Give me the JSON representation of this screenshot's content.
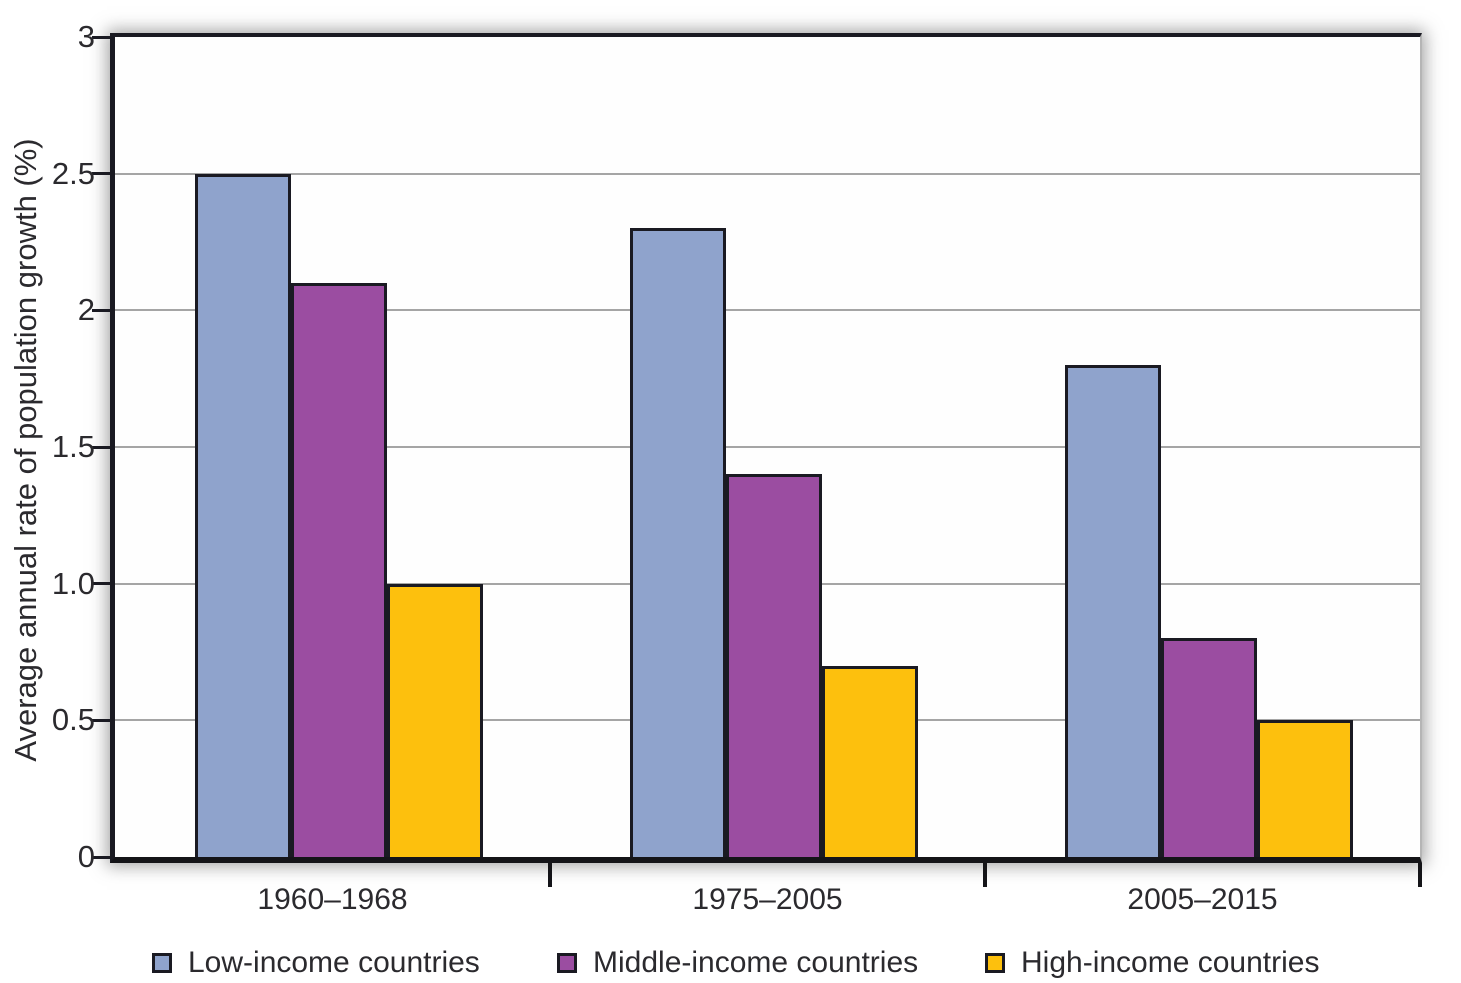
{
  "chart_data": {
    "type": "bar",
    "title": "",
    "categories": [
      "1960–1968",
      "1975–2005",
      "2005–2015"
    ],
    "series": [
      {
        "name": "Low-income countries",
        "color": "#8FA3CC",
        "values": [
          2.5,
          2.3,
          1.8
        ]
      },
      {
        "name": "Middle-income countries",
        "color": "#9B4DA1",
        "values": [
          2.1,
          1.4,
          0.8
        ]
      },
      {
        "name": "High-income countries",
        "color": "#FDC00D",
        "values": [
          1.0,
          0.7,
          0.5
        ]
      }
    ],
    "xlabel": "",
    "ylabel": "Average annual rate of population growth (%)",
    "ylim": [
      0,
      3
    ],
    "yticks": [
      {
        "label": "3",
        "value": 3
      },
      {
        "label": "2.5",
        "value": 2.5
      },
      {
        "label": "2",
        "value": 2
      },
      {
        "label": "1.5",
        "value": 1.5
      },
      {
        "label": "1.0",
        "value": 1.0
      },
      {
        "label": "0.5",
        "value": 0.5
      },
      {
        "label": "0",
        "value": 0
      }
    ],
    "gridlines": [
      2.5,
      2,
      1.5,
      1,
      0.5
    ],
    "grid": true,
    "legend_position": "bottom",
    "colors": {
      "axis": "#1a1a22",
      "gridline": "#a5a5a5",
      "bar_border": "#1a1a22",
      "text": "#2b2a2e"
    }
  }
}
